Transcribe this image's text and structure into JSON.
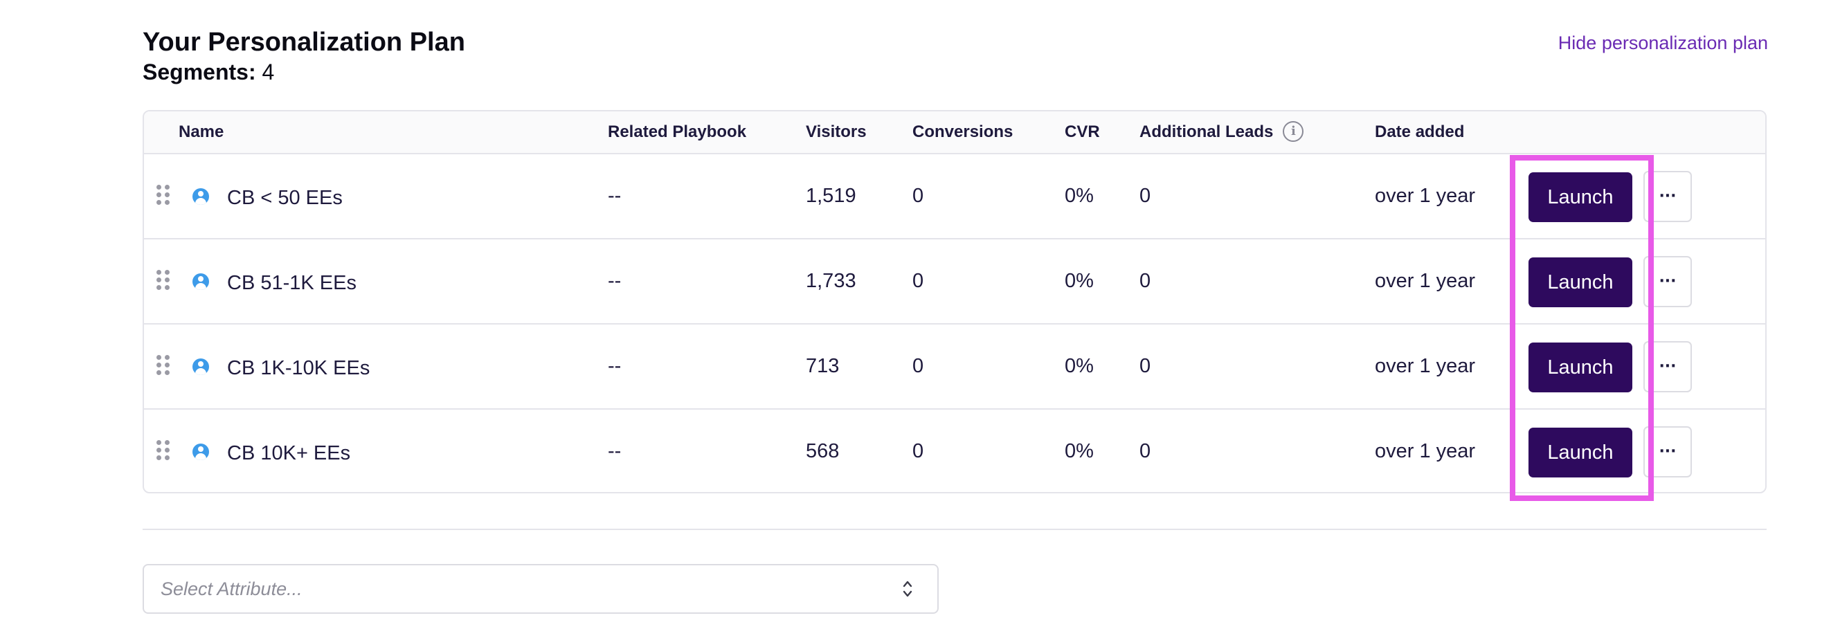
{
  "header": {
    "title": "Your Personalization Plan",
    "segments_label": "Segments:",
    "segments_count": "4",
    "hide_link": "Hide personalization plan"
  },
  "table": {
    "columns": {
      "name": "Name",
      "playbook": "Related Playbook",
      "visitors": "Visitors",
      "conversions": "Conversions",
      "cvr": "CVR",
      "leads": "Additional Leads",
      "date": "Date added"
    },
    "info_icon": "info-icon",
    "rows": [
      {
        "name": "CB < 50 EEs",
        "playbook": "--",
        "visitors": "1,519",
        "conversions": "0",
        "cvr": "0%",
        "leads": "0",
        "date": "over 1 year",
        "launch": "Launch",
        "more": "···"
      },
      {
        "name": "CB 51-1K EEs",
        "playbook": "--",
        "visitors": "1,733",
        "conversions": "0",
        "cvr": "0%",
        "leads": "0",
        "date": "over 1 year",
        "launch": "Launch",
        "more": "···"
      },
      {
        "name": "CB 1K-10K EEs",
        "playbook": "--",
        "visitors": "713",
        "conversions": "0",
        "cvr": "0%",
        "leads": "0",
        "date": "over 1 year",
        "launch": "Launch",
        "more": "···"
      },
      {
        "name": "CB 10K+ EEs",
        "playbook": "--",
        "visitors": "568",
        "conversions": "0",
        "cvr": "0%",
        "leads": "0",
        "date": "over 1 year",
        "launch": "Launch",
        "more": "···"
      }
    ]
  },
  "attribute_select": {
    "placeholder": "Select Attribute..."
  },
  "colors": {
    "accent": "#2e0a5e",
    "link": "#6a2bb3",
    "segment_icon": "#3d9be9",
    "highlight": "#e85ae8"
  },
  "icons": [
    "drag-handle-icon",
    "user-circle-icon",
    "info-icon",
    "chevron-up-down-icon",
    "more-dots-icon"
  ]
}
